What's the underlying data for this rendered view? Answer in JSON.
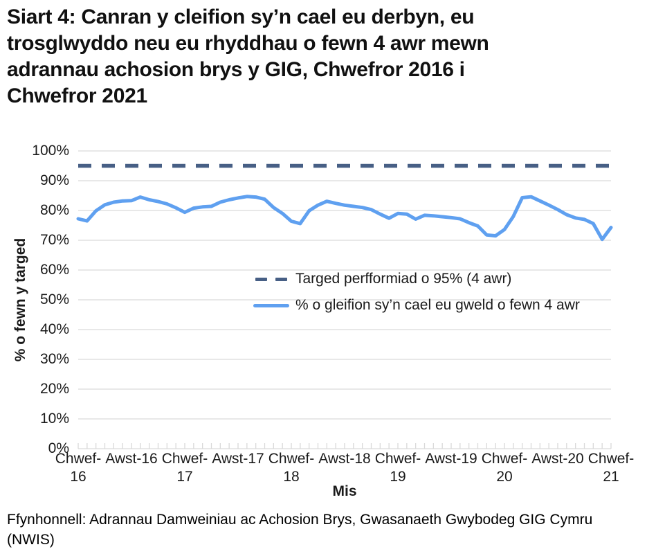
{
  "title_lines": [
    "Siart 4: Canran y cleifion sy’n cael eu derbyn, eu",
    "trosglwyddo neu eu rhyddhau o fewn 4 awr mewn",
    "adrannau achosion brys y GIG, Chwefror 2016 i",
    "Chwefror 2021"
  ],
  "footer_lines": [
    "Ffynhonnell: Adrannau Damweiniau ac Achosion Brys, Gwasanaeth Gwybodeg GIG Cymru",
    "(NWIS)"
  ],
  "colors": {
    "series_line": "#5FA0F0",
    "target_line": "#475F85",
    "gridline": "#d9d9d9",
    "text": "#1a1a1a"
  },
  "chart_data": {
    "type": "line",
    "title": "",
    "xlabel": "Mis",
    "ylabel": "% o fewn y targed",
    "ylim": [
      0,
      100
    ],
    "ytick_step": 10,
    "grid": true,
    "legend_position": "inside-center-right",
    "ytick_labels": [
      "0%",
      "10%",
      "20%",
      "30%",
      "40%",
      "50%",
      "60%",
      "70%",
      "80%",
      "90%",
      "100%"
    ],
    "x_major_labels": [
      [
        "Chwef-",
        "16"
      ],
      [
        "Awst-16"
      ],
      [
        "Chwef-",
        "17"
      ],
      [
        "Awst-17"
      ],
      [
        "Chwef-",
        "18"
      ],
      [
        "Awst-18"
      ],
      [
        "Chwef-",
        "19"
      ],
      [
        "Awst-19"
      ],
      [
        "Chwef-",
        "20"
      ],
      [
        "Awst-20"
      ],
      [
        "Chwef-",
        "21"
      ]
    ],
    "x_start": "Chwefror 2016",
    "x_end": "Chwefror 2021",
    "months_count": 61,
    "series": [
      {
        "name": "Targed perfformiad o 95% (4 awr)",
        "style": "dashed",
        "constant": 95
      },
      {
        "name": "% o gleifion sy’n cael eu gweld o fewn 4 awr",
        "style": "solid",
        "values": [
          77.2,
          76.5,
          79.9,
          81.9,
          82.8,
          83.2,
          83.3,
          84.5,
          83.6,
          83.0,
          82.2,
          80.9,
          79.4,
          80.8,
          81.2,
          81.4,
          82.8,
          83.6,
          84.2,
          84.7,
          84.5,
          83.8,
          81.0,
          79.0,
          76.4,
          75.6,
          79.9,
          81.8,
          83.1,
          82.4,
          81.8,
          81.4,
          81.0,
          80.3,
          78.8,
          77.4,
          79.0,
          78.8,
          77.1,
          78.4,
          78.2,
          77.9,
          77.6,
          77.2,
          75.9,
          74.8,
          71.8,
          71.5,
          73.6,
          78.0,
          84.3,
          84.6,
          83.2,
          81.8,
          80.3,
          78.6,
          77.5,
          77.0,
          75.6,
          70.3,
          74.3
        ]
      }
    ]
  }
}
